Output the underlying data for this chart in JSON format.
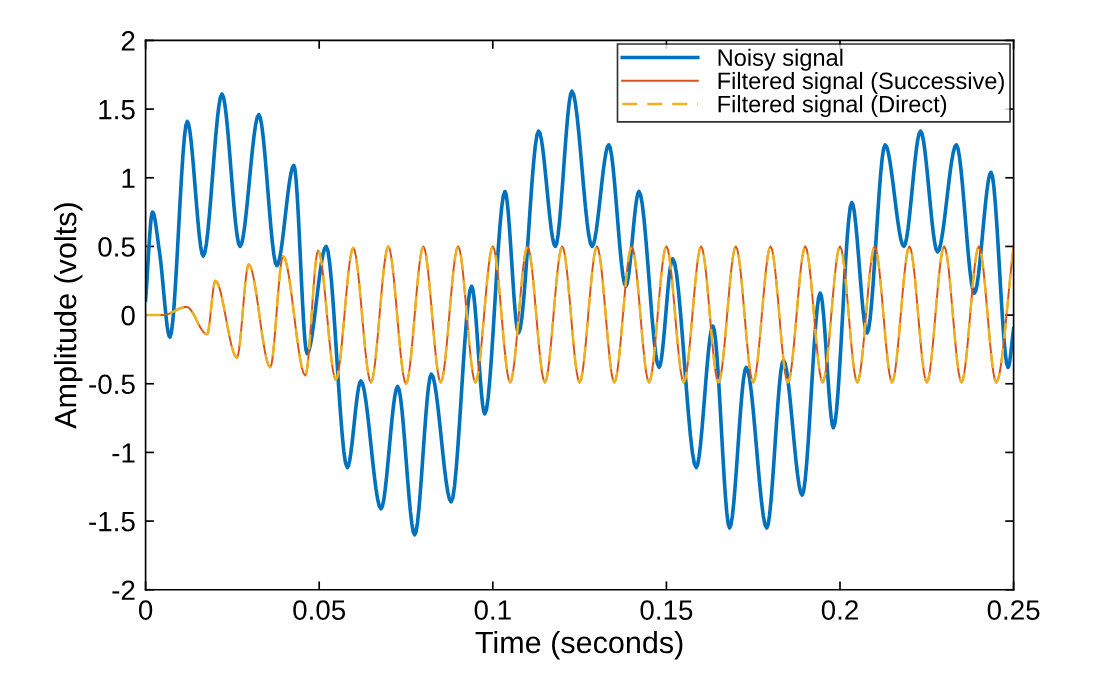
{
  "chart_data": {
    "type": "line",
    "xlabel": "Time (seconds)",
    "ylabel": "Amplitude (volts)",
    "xlim": [
      0,
      0.25
    ],
    "ylim": [
      -2,
      2
    ],
    "xticks": [
      0,
      0.05,
      0.1,
      0.15,
      0.2,
      0.25
    ],
    "yticks": [
      -2,
      -1.5,
      -1,
      -0.5,
      0,
      0.5,
      1,
      1.5,
      2
    ],
    "grid": false,
    "legend": "top right",
    "series": [
      {
        "name": "Noisy signal",
        "color": "#0072bd",
        "line_style": "solid",
        "x": [
          0,
          0.002,
          0.004,
          0.007,
          0.012,
          0.0166,
          0.022,
          0.0272,
          0.0326,
          0.0378,
          0.0427,
          0.0465,
          0.052,
          0.0581,
          0.062,
          0.0678,
          0.0726,
          0.0775,
          0.0823,
          0.088,
          0.0939,
          0.0977,
          0.1035,
          0.1074,
          0.1132,
          0.118,
          0.1228,
          0.1286,
          0.1334,
          0.1383,
          0.1421,
          0.1479,
          0.1518,
          0.1586,
          0.1634,
          0.1682,
          0.173,
          0.1789,
          0.1837,
          0.1891,
          0.1943,
          0.1981,
          0.2034,
          0.2078,
          0.213,
          0.2184,
          0.2232,
          0.2281,
          0.2335,
          0.2387,
          0.2435,
          0.2484,
          0.25
        ],
        "values": [
          0.11,
          0.75,
          0.46,
          -0.16,
          1.41,
          0.43,
          1.61,
          0.5,
          1.46,
          0.36,
          1.09,
          -0.28,
          0.5,
          -1.11,
          -0.48,
          -1.41,
          -0.52,
          -1.6,
          -0.43,
          -1.36,
          0.21,
          -0.72,
          0.9,
          -0.13,
          1.34,
          0.5,
          1.63,
          0.5,
          1.24,
          0.21,
          0.9,
          -0.38,
          0.41,
          -1.11,
          -0.08,
          -1.55,
          -0.38,
          -1.55,
          -0.33,
          -1.31,
          0.16,
          -0.82,
          0.82,
          -0.13,
          1.24,
          0.5,
          1.34,
          0.46,
          1.24,
          0.16,
          1.04,
          -0.38,
          -0.1
        ]
      },
      {
        "name": "Filtered signal (Successive)",
        "color": "#d95319",
        "line_style": "solid",
        "x": [
          0,
          0.005,
          0.0118,
          0.0177,
          0.0201,
          0.0263,
          0.0297,
          0.0359,
          0.0396,
          0.046,
          0.0497,
          0.0548,
          0.0598,
          0.0649,
          0.0699,
          0.075,
          0.08,
          0.085,
          0.09,
          0.095,
          0.1,
          0.105,
          0.11,
          0.115,
          0.12,
          0.125,
          0.13,
          0.135,
          0.14,
          0.145,
          0.15,
          0.155,
          0.16,
          0.165,
          0.17,
          0.175,
          0.18,
          0.185,
          0.19,
          0.195,
          0.2,
          0.205,
          0.21,
          0.215,
          0.22,
          0.225,
          0.23,
          0.235,
          0.24,
          0.245,
          0.25
        ],
        "values": [
          0,
          0,
          0.06,
          -0.14,
          0.25,
          -0.31,
          0.37,
          -0.38,
          0.43,
          -0.44,
          0.47,
          -0.47,
          0.49,
          -0.49,
          0.5,
          -0.5,
          0.5,
          -0.49,
          0.5,
          -0.49,
          0.5,
          -0.49,
          0.5,
          -0.49,
          0.5,
          -0.49,
          0.5,
          -0.49,
          0.5,
          -0.49,
          0.5,
          -0.49,
          0.5,
          -0.49,
          0.5,
          -0.49,
          0.5,
          -0.49,
          0.5,
          -0.49,
          0.5,
          -0.49,
          0.5,
          -0.49,
          0.5,
          -0.49,
          0.5,
          -0.49,
          0.5,
          -0.49,
          0.5
        ]
      },
      {
        "name": "Filtered signal (Direct)",
        "color": "#edb120",
        "line_style": "dashed",
        "x": [
          0,
          0.005,
          0.0118,
          0.0177,
          0.0201,
          0.0263,
          0.0297,
          0.0359,
          0.0396,
          0.046,
          0.0497,
          0.0548,
          0.0598,
          0.0649,
          0.0699,
          0.075,
          0.08,
          0.085,
          0.09,
          0.095,
          0.1,
          0.105,
          0.11,
          0.115,
          0.12,
          0.125,
          0.13,
          0.135,
          0.14,
          0.145,
          0.15,
          0.155,
          0.16,
          0.165,
          0.17,
          0.175,
          0.18,
          0.185,
          0.19,
          0.195,
          0.2,
          0.205,
          0.21,
          0.215,
          0.22,
          0.225,
          0.23,
          0.235,
          0.24,
          0.245,
          0.25
        ],
        "values": [
          0,
          0,
          0.06,
          -0.14,
          0.25,
          -0.31,
          0.37,
          -0.38,
          0.43,
          -0.44,
          0.47,
          -0.47,
          0.49,
          -0.49,
          0.5,
          -0.5,
          0.5,
          -0.49,
          0.5,
          -0.49,
          0.5,
          -0.49,
          0.5,
          -0.49,
          0.5,
          -0.49,
          0.5,
          -0.49,
          0.5,
          -0.49,
          0.5,
          -0.49,
          0.5,
          -0.49,
          0.5,
          -0.49,
          0.5,
          -0.49,
          0.5,
          -0.49,
          0.5,
          -0.49,
          0.5,
          -0.49,
          0.5,
          -0.49,
          0.5,
          -0.49,
          0.5,
          -0.49,
          0.5
        ]
      }
    ]
  }
}
